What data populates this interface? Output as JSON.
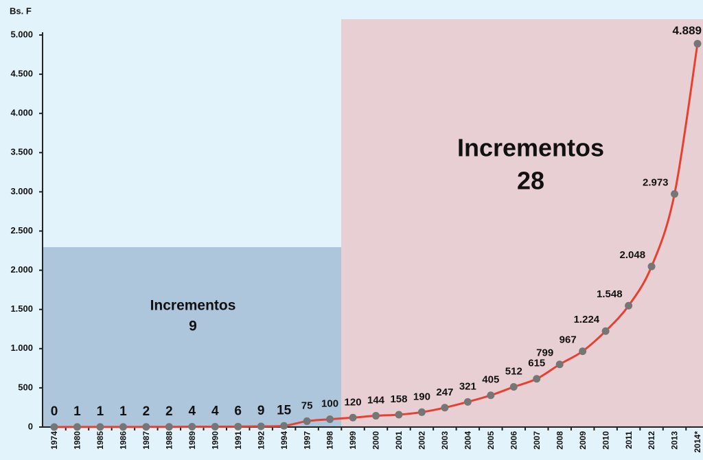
{
  "chart_data": {
    "type": "line",
    "y_label": "Bs. F",
    "categories": [
      "1974",
      "1980",
      "1985",
      "1986",
      "1987",
      "1988",
      "1989",
      "1990",
      "1991",
      "1992",
      "1994",
      "1997",
      "1998",
      "1999",
      "2000",
      "2001",
      "2002",
      "2003",
      "2004",
      "2005",
      "2006",
      "2007",
      "2008",
      "2009",
      "2010",
      "2011",
      "2012",
      "2013",
      "2014*"
    ],
    "values": [
      0,
      1,
      1,
      1,
      2,
      2,
      4,
      4,
      6,
      9,
      15,
      75,
      100,
      120,
      144,
      158,
      190,
      247,
      321,
      405,
      512,
      615,
      799,
      967,
      1224,
      1548,
      2048,
      2973,
      4889
    ],
    "value_labels": [
      "0",
      "1",
      "1",
      "1",
      "2",
      "2",
      "4",
      "4",
      "6",
      "9",
      "15",
      "75",
      "100",
      "120",
      "144",
      "158",
      "190",
      "247",
      "321",
      "405",
      "512",
      "615",
      "799",
      "967",
      "1.224",
      "1.548",
      "2.048",
      "2.973",
      "4.889"
    ],
    "color": "#e8402f",
    "marker_color": "#767676",
    "ylim": [
      0,
      5000
    ],
    "yticks": [
      0,
      500,
      {
        "value": 1000,
        "label": "1.000"
      },
      {
        "value": 1500,
        "label": "1.500"
      },
      {
        "value": 2000,
        "label": "2.000"
      },
      {
        "value": 2500,
        "label": "2.500"
      },
      {
        "value": 3000,
        "label": "3.000"
      },
      {
        "value": 3500,
        "label": "3.500"
      },
      {
        "value": 4000,
        "label": "4.000"
      },
      {
        "value": 4500,
        "label": "4.500"
      },
      {
        "value": 5000,
        "label": "5.000"
      }
    ],
    "annotations": [
      [
        "Incrementos",
        "9"
      ],
      [
        "Incrementos",
        "28"
      ]
    ]
  }
}
